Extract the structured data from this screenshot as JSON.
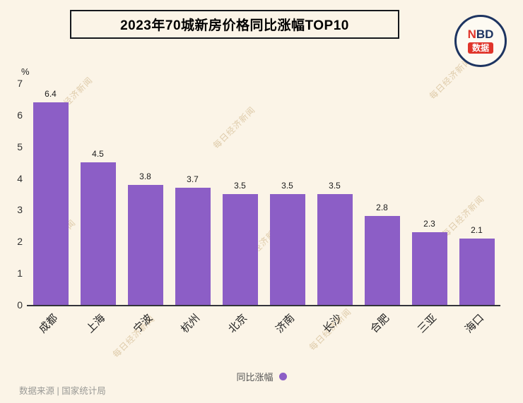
{
  "title": "2023年70城新房价格同比涨幅TOP10",
  "logo": {
    "n": "N",
    "bd": "BD",
    "badge": "数据"
  },
  "watermark": "每日经济新闻",
  "legend": {
    "label": "同比涨幅"
  },
  "footer": {
    "source": "数据来源 | 国家统计局"
  },
  "colors": {
    "background": "#fbf4e7",
    "bar": "#8c5ec6",
    "accent_red": "#e0352b",
    "navy": "#1d3461"
  },
  "chart_data": {
    "type": "bar",
    "title": "2023年70城新房价格同比涨幅TOP10",
    "categories": [
      "成都",
      "上海",
      "宁波",
      "杭州",
      "北京",
      "济南",
      "长沙",
      "合肥",
      "三亚",
      "海口"
    ],
    "values": [
      6.4,
      4.5,
      3.8,
      3.7,
      3.5,
      3.5,
      3.5,
      2.8,
      2.3,
      2.1
    ],
    "xlabel": "",
    "ylabel": "%",
    "ylim": [
      0,
      7
    ],
    "yticks": [
      0,
      1,
      2,
      3,
      4,
      5,
      6,
      7
    ],
    "grid": false,
    "legend_position": "bottom",
    "series_name": "同比涨幅"
  }
}
